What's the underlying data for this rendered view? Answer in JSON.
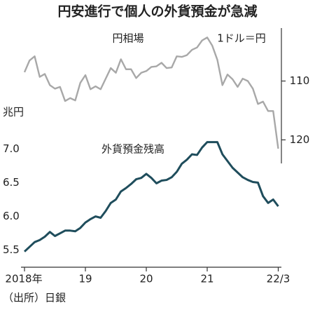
{
  "chart_data": {
    "type": "line",
    "title": "円安進行で個人の外貨預金が急減",
    "source": "（出所）日銀",
    "categories": [
      "2018年",
      null,
      null,
      null,
      null,
      null,
      null,
      null,
      null,
      null,
      null,
      null,
      "19",
      null,
      null,
      null,
      null,
      null,
      null,
      null,
      null,
      null,
      null,
      null,
      "20",
      null,
      null,
      null,
      null,
      null,
      null,
      null,
      null,
      null,
      null,
      null,
      "21",
      null,
      null,
      null,
      null,
      null,
      null,
      null,
      null,
      null,
      null,
      null,
      null,
      null,
      "22/3"
    ],
    "series": [
      {
        "name": "円相場",
        "unit_label": "1ドル＝円",
        "color": "#a8a8a8",
        "axis": "y2",
        "values": [
          108.5,
          106.5,
          105.8,
          109.3,
          108.8,
          110.7,
          111.3,
          111.0,
          113.4,
          112.9,
          113.3,
          110.3,
          109.0,
          111.4,
          110.9,
          111.4,
          109.6,
          107.8,
          108.6,
          106.3,
          108.0,
          108.0,
          109.5,
          108.6,
          108.3,
          107.6,
          107.5,
          106.9,
          107.8,
          107.7,
          105.8,
          105.9,
          105.6,
          104.7,
          104.3,
          103.1,
          102.6,
          104.0,
          106.4,
          110.7,
          108.9,
          109.7,
          111.0,
          109.6,
          110.0,
          111.3,
          113.9,
          113.5,
          115.1,
          115.1,
          121.5
        ]
      },
      {
        "name": "外貨預金残高",
        "color": "#1f4d5c",
        "axis": "y",
        "values": [
          5.48,
          5.55,
          5.62,
          5.65,
          5.7,
          5.77,
          5.71,
          5.75,
          5.79,
          5.79,
          5.78,
          5.83,
          5.91,
          5.96,
          6.0,
          5.98,
          6.08,
          6.2,
          6.25,
          6.37,
          6.42,
          6.48,
          6.55,
          6.57,
          6.63,
          6.57,
          6.49,
          6.53,
          6.54,
          6.58,
          6.66,
          6.78,
          6.84,
          6.92,
          6.91,
          7.02,
          7.1,
          7.1,
          7.1,
          6.92,
          6.82,
          6.72,
          6.65,
          6.58,
          6.54,
          6.51,
          6.5,
          6.3,
          6.2,
          6.25,
          6.15
        ]
      }
    ],
    "y_label": "兆円",
    "ylim": [
      5.3,
      7.2
    ],
    "yticks": [
      {
        "value": 5.5,
        "label": "5.5"
      },
      {
        "value": 6.0,
        "label": "6.0"
      },
      {
        "value": 6.5,
        "label": "6.5"
      },
      {
        "value": 7.0,
        "label": "7.0"
      }
    ],
    "y2lim": [
      101,
      124
    ],
    "y2ticks": [
      110,
      120
    ],
    "y2_inverted": true
  }
}
